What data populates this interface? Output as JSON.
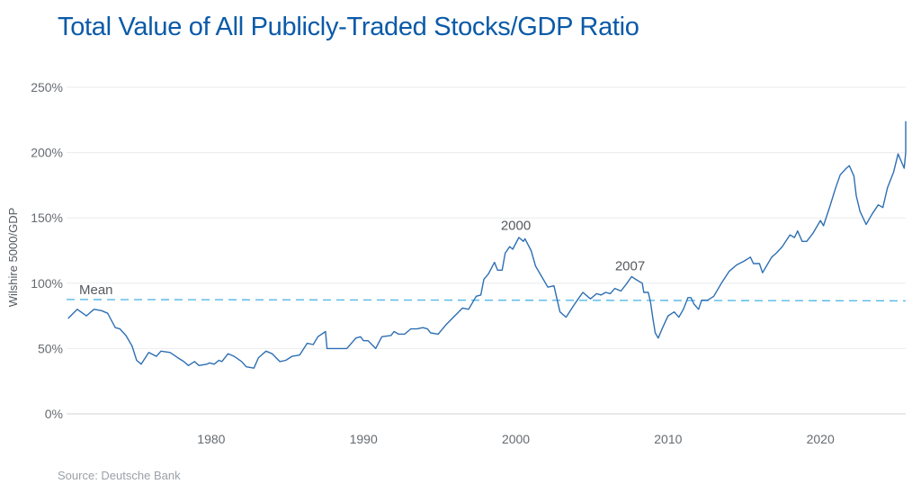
{
  "title": "Total Value of All Publicly-Traded Stocks/GDP Ratio",
  "source": "Source: Deutsche Bank",
  "chart_data": {
    "type": "line",
    "title": "Total Value of All Publicly-Traded Stocks/GDP Ratio",
    "xlabel": "",
    "ylabel": "Wilshire 5000/GDP",
    "xlim": [
      1970.5,
      2025.6
    ],
    "ylim": [
      0,
      250
    ],
    "x_ticks": [
      1980,
      1990,
      2000,
      2010,
      2020
    ],
    "y_ticks": [
      {
        "value": 0,
        "label": "0%"
      },
      {
        "value": 50,
        "label": "50%"
      },
      {
        "value": 100,
        "label": "100%"
      },
      {
        "value": 150,
        "label": "150%"
      },
      {
        "value": 200,
        "label": "200%"
      },
      {
        "value": 250,
        "label": "250%"
      }
    ],
    "grid": true,
    "line_color": "#2e6fb2",
    "mean_color": "#55b9e8",
    "mean": {
      "label": "Mean",
      "y_start": 87.5,
      "y_end": 86.5
    },
    "annotations": [
      {
        "text": "2000",
        "x": 2000.0,
        "y": 141
      },
      {
        "text": "2007",
        "x": 2007.5,
        "y": 110
      }
    ],
    "series": [
      {
        "points": [
          [
            1970.6,
            73
          ],
          [
            1971.2,
            80
          ],
          [
            1971.8,
            75
          ],
          [
            1972.3,
            80
          ],
          [
            1972.8,
            79
          ],
          [
            1973.2,
            77
          ],
          [
            1973.7,
            66
          ],
          [
            1974.0,
            65
          ],
          [
            1974.4,
            60
          ],
          [
            1974.8,
            52
          ],
          [
            1975.1,
            41
          ],
          [
            1975.4,
            38
          ],
          [
            1975.9,
            47
          ],
          [
            1976.4,
            44
          ],
          [
            1976.7,
            48
          ],
          [
            1977.3,
            47
          ],
          [
            1977.8,
            43
          ],
          [
            1978.2,
            40
          ],
          [
            1978.5,
            37
          ],
          [
            1978.9,
            40
          ],
          [
            1979.2,
            37
          ],
          [
            1979.7,
            38
          ],
          [
            1979.9,
            39
          ],
          [
            1980.2,
            38
          ],
          [
            1980.5,
            41
          ],
          [
            1980.7,
            40
          ],
          [
            1981.1,
            46
          ],
          [
            1981.5,
            44
          ],
          [
            1982.0,
            40
          ],
          [
            1982.3,
            36
          ],
          [
            1982.8,
            35
          ],
          [
            1983.1,
            43
          ],
          [
            1983.6,
            48
          ],
          [
            1984.0,
            46
          ],
          [
            1984.5,
            40
          ],
          [
            1984.9,
            41
          ],
          [
            1985.3,
            44
          ],
          [
            1985.8,
            45
          ],
          [
            1986.3,
            54
          ],
          [
            1986.7,
            53
          ],
          [
            1987.0,
            59
          ],
          [
            1987.5,
            63
          ],
          [
            1987.6,
            50
          ],
          [
            1988.3,
            50
          ],
          [
            1988.9,
            50
          ],
          [
            1989.5,
            58
          ],
          [
            1989.8,
            59
          ],
          [
            1990.0,
            56
          ],
          [
            1990.3,
            56
          ],
          [
            1990.8,
            50
          ],
          [
            1991.2,
            59
          ],
          [
            1991.8,
            60
          ],
          [
            1992.0,
            63
          ],
          [
            1992.3,
            61
          ],
          [
            1992.7,
            61
          ],
          [
            1993.1,
            65
          ],
          [
            1993.5,
            65
          ],
          [
            1993.9,
            66
          ],
          [
            1994.2,
            65
          ],
          [
            1994.4,
            62
          ],
          [
            1994.9,
            61
          ],
          [
            1995.4,
            68
          ],
          [
            1995.9,
            74
          ],
          [
            1996.5,
            81
          ],
          [
            1996.9,
            80
          ],
          [
            1997.4,
            90
          ],
          [
            1997.7,
            91
          ],
          [
            1997.9,
            103
          ],
          [
            1998.2,
            107
          ],
          [
            1998.6,
            116
          ],
          [
            1998.8,
            110
          ],
          [
            1999.1,
            110
          ],
          [
            1999.3,
            123
          ],
          [
            1999.6,
            128
          ],
          [
            1999.8,
            126
          ],
          [
            2000.2,
            135
          ],
          [
            2000.5,
            132
          ],
          [
            2000.6,
            134
          ],
          [
            2001.0,
            125
          ],
          [
            2001.3,
            113
          ],
          [
            2001.7,
            105
          ],
          [
            2002.1,
            97
          ],
          [
            2002.5,
            98
          ],
          [
            2002.9,
            78
          ],
          [
            2003.3,
            74
          ],
          [
            2003.8,
            83
          ],
          [
            2004.1,
            88
          ],
          [
            2004.4,
            93
          ],
          [
            2004.9,
            88
          ],
          [
            2005.3,
            92
          ],
          [
            2005.6,
            91
          ],
          [
            2005.9,
            93
          ],
          [
            2006.2,
            92
          ],
          [
            2006.5,
            96
          ],
          [
            2006.9,
            94
          ],
          [
            2007.3,
            100
          ],
          [
            2007.6,
            105
          ],
          [
            2008.0,
            102
          ],
          [
            2008.3,
            100
          ],
          [
            2008.4,
            93
          ],
          [
            2008.7,
            93
          ],
          [
            2008.85,
            85
          ],
          [
            2009.0,
            73
          ],
          [
            2009.15,
            62
          ],
          [
            2009.35,
            58
          ],
          [
            2009.6,
            65
          ],
          [
            2010.0,
            75
          ],
          [
            2010.4,
            78
          ],
          [
            2010.7,
            74
          ],
          [
            2011.0,
            80
          ],
          [
            2011.3,
            89
          ],
          [
            2011.5,
            89
          ],
          [
            2011.7,
            84
          ],
          [
            2012.0,
            80
          ],
          [
            2012.2,
            87
          ],
          [
            2012.6,
            87
          ],
          [
            2013.0,
            90
          ],
          [
            2013.5,
            100
          ],
          [
            2014.0,
            109
          ],
          [
            2014.5,
            114
          ],
          [
            2015.0,
            117
          ],
          [
            2015.4,
            120
          ],
          [
            2015.6,
            115
          ],
          [
            2016.0,
            115
          ],
          [
            2016.2,
            108
          ],
          [
            2016.5,
            114
          ],
          [
            2016.8,
            120
          ],
          [
            2017.1,
            123
          ],
          [
            2017.5,
            128
          ],
          [
            2018.0,
            137
          ],
          [
            2018.3,
            135
          ],
          [
            2018.5,
            140
          ],
          [
            2018.8,
            132
          ],
          [
            2019.1,
            132
          ],
          [
            2019.5,
            138
          ],
          [
            2020.0,
            148
          ],
          [
            2020.2,
            144
          ],
          [
            2020.6,
            158
          ],
          [
            2021.0,
            173
          ],
          [
            2021.3,
            183
          ],
          [
            2021.7,
            188
          ],
          [
            2021.9,
            190
          ],
          [
            2022.2,
            182
          ],
          [
            2022.35,
            167
          ],
          [
            2022.6,
            155
          ],
          [
            2023.0,
            145
          ],
          [
            2023.4,
            153
          ],
          [
            2023.8,
            160
          ],
          [
            2024.1,
            158
          ],
          [
            2024.4,
            173
          ],
          [
            2024.8,
            185
          ],
          [
            2025.1,
            199
          ],
          [
            2025.5,
            188
          ],
          [
            2025.7,
            200
          ],
          [
            2025.85,
            215
          ],
          [
            2026.3,
            224
          ]
        ]
      }
    ]
  }
}
